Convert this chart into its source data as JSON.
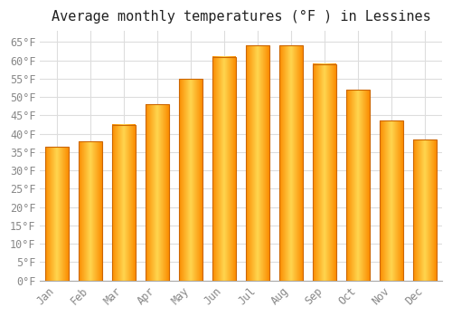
{
  "title": "Average monthly temperatures (°F ) in Lessines",
  "months": [
    "Jan",
    "Feb",
    "Mar",
    "Apr",
    "May",
    "Jun",
    "Jul",
    "Aug",
    "Sep",
    "Oct",
    "Nov",
    "Dec"
  ],
  "values": [
    36.5,
    38.0,
    42.5,
    48.0,
    55.0,
    61.0,
    64.0,
    64.0,
    59.0,
    52.0,
    43.5,
    38.5
  ],
  "bar_color_center": "#FFD54F",
  "bar_color_edge": "#FB8C00",
  "bar_border_color": "#E65100",
  "ylim": [
    0,
    68
  ],
  "yticks": [
    0,
    5,
    10,
    15,
    20,
    25,
    30,
    35,
    40,
    45,
    50,
    55,
    60,
    65
  ],
  "ytick_labels": [
    "0°F",
    "5°F",
    "10°F",
    "15°F",
    "20°F",
    "25°F",
    "30°F",
    "35°F",
    "40°F",
    "45°F",
    "50°F",
    "55°F",
    "60°F",
    "65°F"
  ],
  "background_color": "#ffffff",
  "grid_color": "#dddddd",
  "title_fontsize": 11,
  "tick_fontsize": 8.5,
  "tick_color": "#888888",
  "font_family": "monospace"
}
